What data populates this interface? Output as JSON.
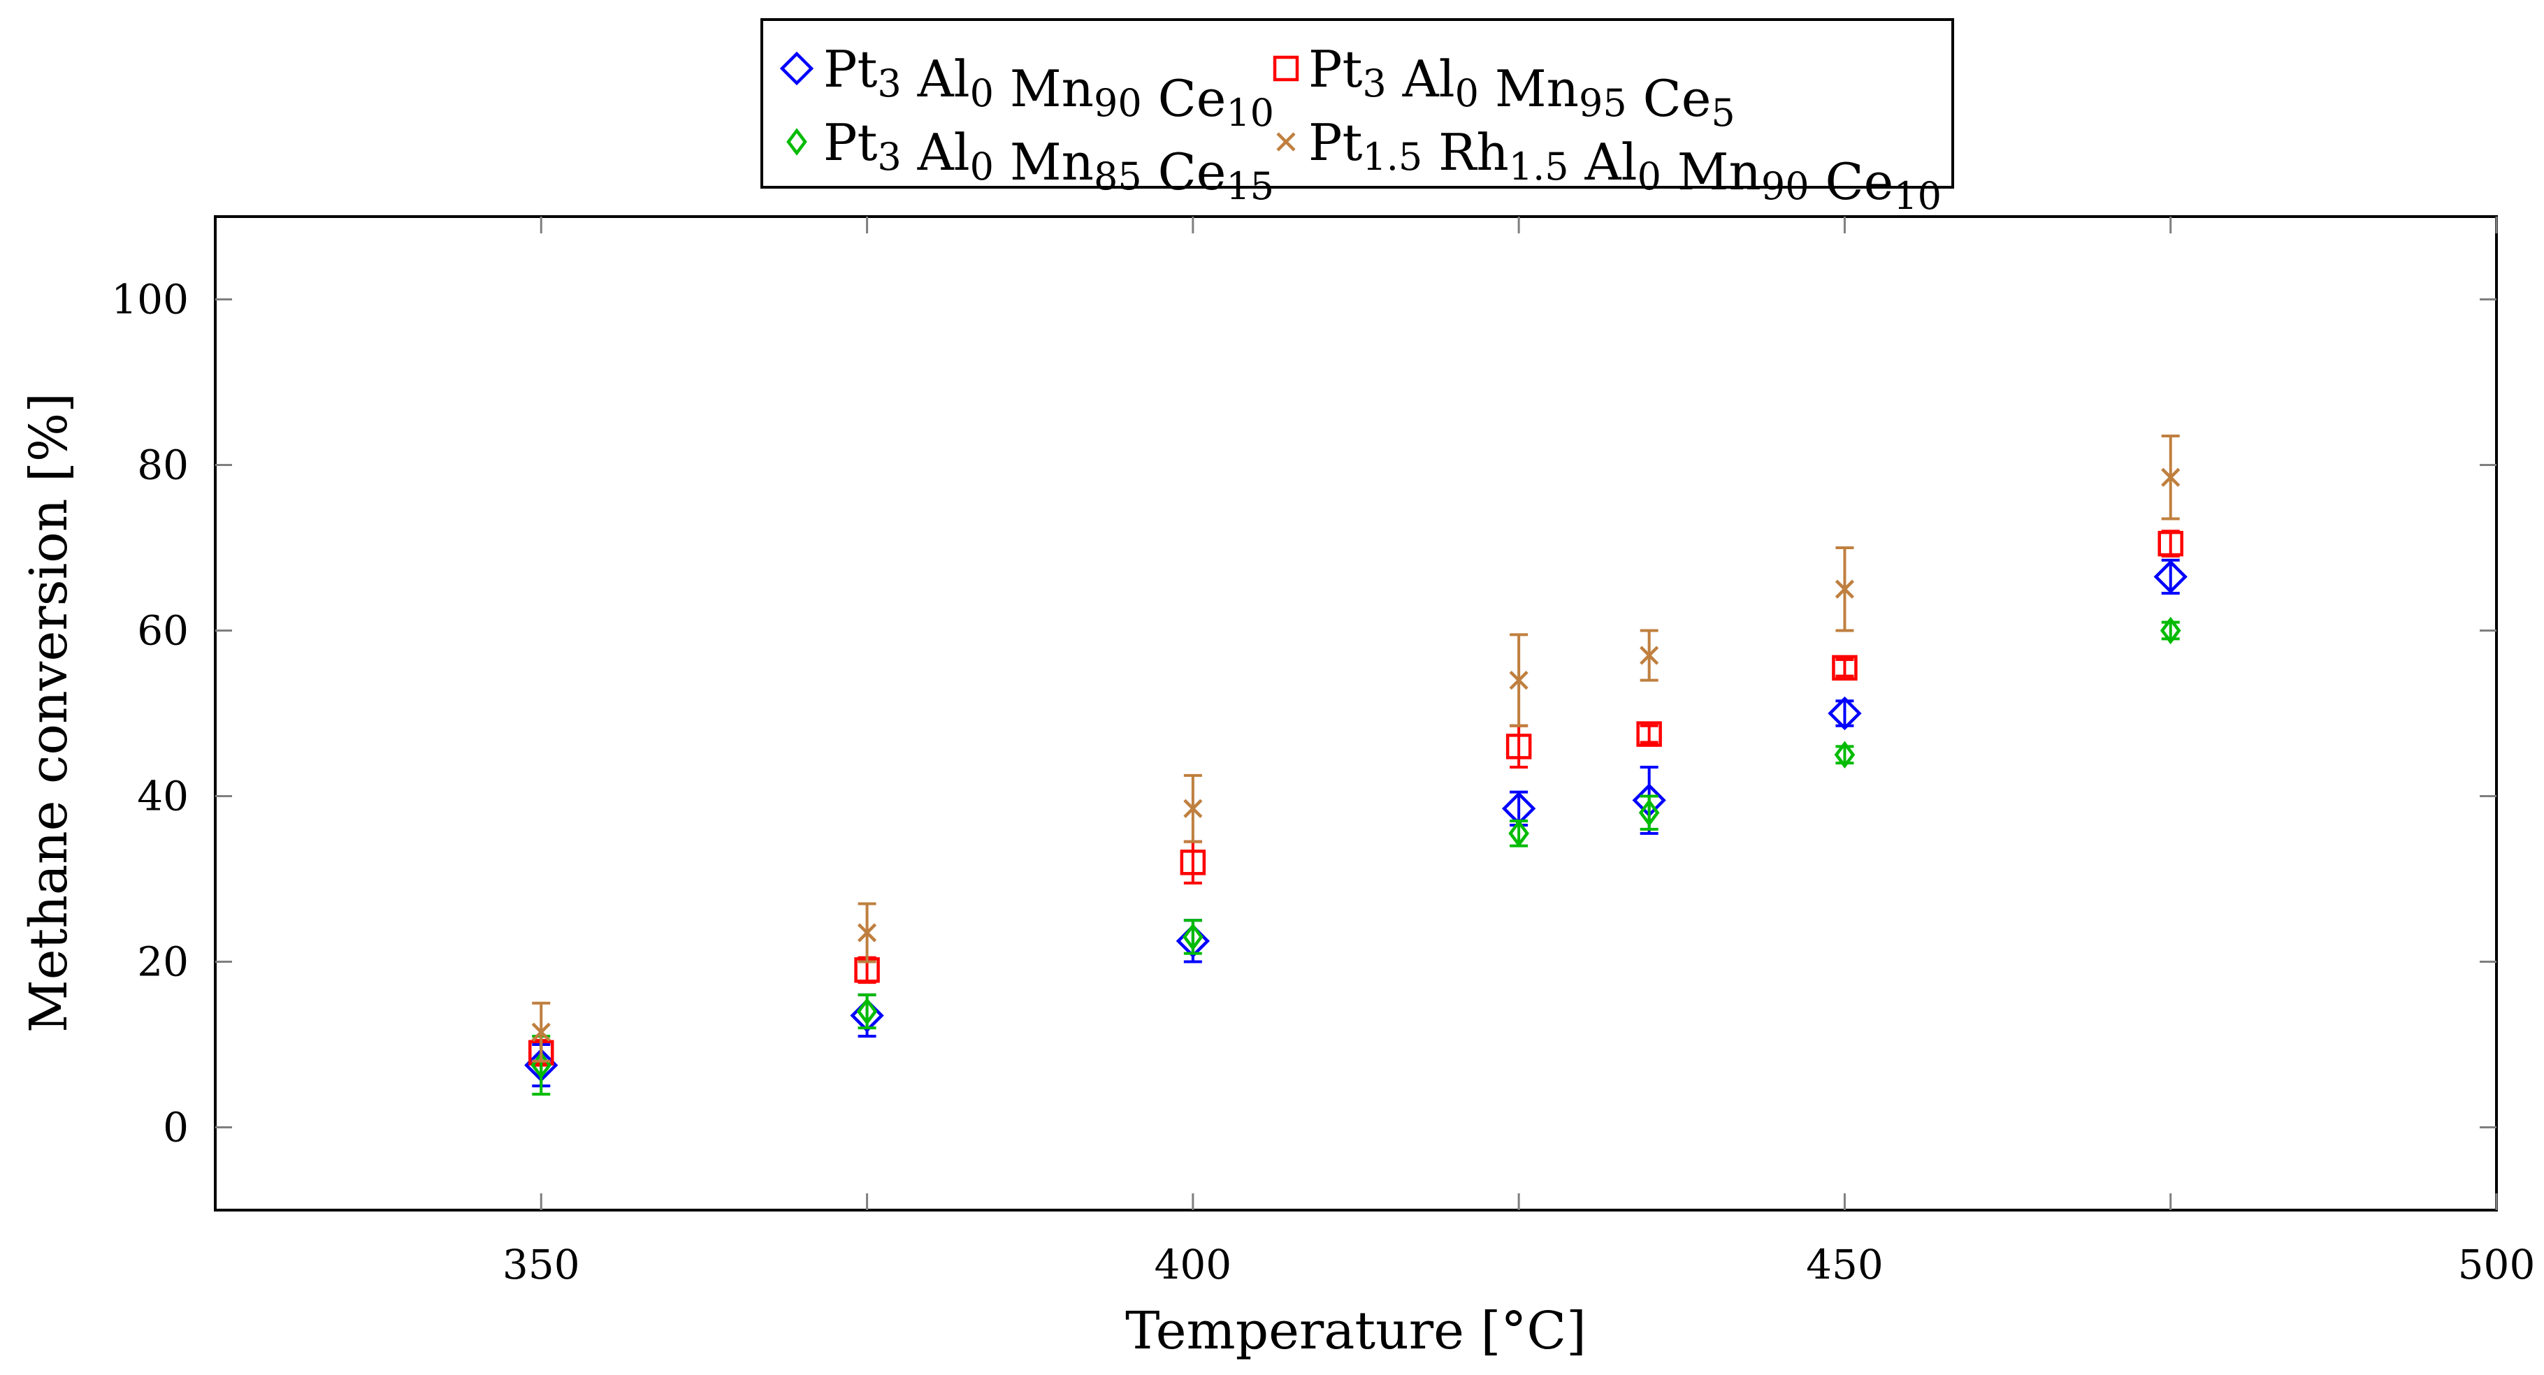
{
  "chart_data": {
    "type": "scatter",
    "title": "",
    "xlabel": "Temperature [°C]",
    "ylabel": "Methane conversion [%]",
    "xlim": [
      325,
      500
    ],
    "ylim": [
      -10,
      110
    ],
    "x_ticks": [
      350,
      375,
      400,
      425,
      450,
      475,
      500
    ],
    "x_tick_labels": [
      "350",
      "",
      "400",
      "",
      "450",
      "",
      "500"
    ],
    "y_ticks": [
      0,
      20,
      40,
      60,
      80,
      100
    ],
    "y_tick_labels": [
      "0",
      "20",
      "40",
      "60",
      "80",
      "100"
    ],
    "legend_position": "top-center",
    "series": [
      {
        "name": "Pt3 Al0 Mn90 Ce10",
        "label_parts": [
          [
            "Pt",
            ""
          ],
          [
            "3",
            "sub"
          ],
          [
            " Al",
            ""
          ],
          [
            "0",
            "sub"
          ],
          [
            " Mn",
            ""
          ],
          [
            "90",
            "sub"
          ],
          [
            " Ce",
            ""
          ],
          [
            "10",
            "sub"
          ]
        ],
        "color": "#0000ff",
        "marker": "diamond",
        "x": [
          350,
          375,
          400,
          425,
          435,
          450,
          475
        ],
        "y": [
          7.5,
          13.5,
          22.5,
          38.5,
          39.5,
          50,
          66.5
        ],
        "err": [
          2.5,
          2.5,
          2.5,
          2,
          4,
          1.5,
          2
        ]
      },
      {
        "name": "Pt3 Al0 Mn95 Ce5",
        "label_parts": [
          [
            "Pt",
            ""
          ],
          [
            "3",
            "sub"
          ],
          [
            " Al",
            ""
          ],
          [
            "0",
            "sub"
          ],
          [
            " Mn",
            ""
          ],
          [
            "95",
            "sub"
          ],
          [
            " Ce",
            ""
          ],
          [
            "5",
            "sub"
          ]
        ],
        "color": "#ff0000",
        "marker": "square",
        "x": [
          350,
          375,
          400,
          425,
          435,
          450,
          475
        ],
        "y": [
          9,
          19,
          32,
          46,
          47.5,
          55.5,
          70.5
        ],
        "err": [
          1.5,
          1.5,
          2.5,
          2.5,
          1,
          1,
          1.5
        ]
      },
      {
        "name": "Pt3 Al0 Mn85 Ce15",
        "label_parts": [
          [
            "Pt",
            ""
          ],
          [
            "3",
            "sub"
          ],
          [
            " Al",
            ""
          ],
          [
            "0",
            "sub"
          ],
          [
            " Mn",
            ""
          ],
          [
            "85",
            "sub"
          ],
          [
            " Ce",
            ""
          ],
          [
            "15",
            "sub"
          ]
        ],
        "color": "#00bb00",
        "marker": "diamond-small",
        "x": [
          350,
          375,
          400,
          425,
          435,
          450,
          475
        ],
        "y": [
          7.5,
          14,
          23,
          35.5,
          38,
          45,
          60
        ],
        "err": [
          3.5,
          2,
          2,
          1.5,
          2,
          1,
          1
        ]
      },
      {
        "name": "Pt1.5 Rh1.5 Al0 Mn90 Ce10",
        "label_parts": [
          [
            "Pt",
            ""
          ],
          [
            "1.5",
            "sub"
          ],
          [
            " Rh",
            ""
          ],
          [
            "1.5",
            "sub"
          ],
          [
            " Al",
            ""
          ],
          [
            "0",
            "sub"
          ],
          [
            " Mn",
            ""
          ],
          [
            "90",
            "sub"
          ],
          [
            " Ce",
            ""
          ],
          [
            "10",
            "sub"
          ]
        ],
        "color": "#bf7f3f",
        "marker": "cross",
        "x": [
          350,
          375,
          400,
          425,
          435,
          450,
          475
        ],
        "y": [
          11.5,
          23.5,
          38.5,
          54,
          57,
          65,
          78.5
        ],
        "err": [
          3.5,
          3.5,
          4,
          5.5,
          3,
          5,
          5
        ]
      }
    ]
  }
}
